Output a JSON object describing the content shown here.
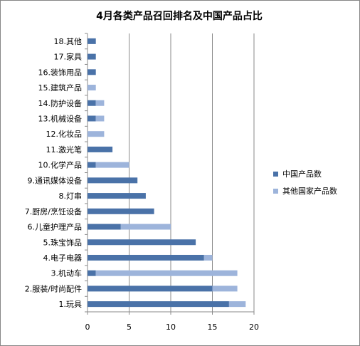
{
  "chart_data": {
    "type": "bar",
    "orientation": "horizontal",
    "stacked": true,
    "title": "4月各类产品召回排名及中国产品占比",
    "categories": [
      "1.玩具",
      "2.服装/时尚配件",
      "3.机动车",
      "4.电子电器",
      "5.珠宝饰品",
      "6.儿童护理产品",
      "7.厨房/烹饪设备",
      "8.灯串",
      "9.通讯媒体设备",
      "10.化学产品",
      "11.激光笔",
      "12.化妆品",
      "13.机械设备",
      "14.防护设备",
      "15.建筑产品",
      "16.装饰用品",
      "17.家具",
      "18.其他"
    ],
    "series": [
      {
        "name": "中国产品数",
        "color": "#4a72a8",
        "values": [
          17,
          15,
          1,
          14,
          13,
          4,
          8,
          7,
          6,
          1,
          3,
          0,
          1,
          1,
          0,
          1,
          1,
          1
        ]
      },
      {
        "name": "其他国家产品数",
        "color": "#9db4db",
        "values": [
          2,
          3,
          17,
          1,
          0,
          6,
          0,
          0,
          0,
          4,
          0,
          2,
          1,
          1,
          1,
          0,
          0,
          0
        ]
      }
    ],
    "xlim": [
      0,
      20
    ],
    "xticks": [
      0,
      5,
      10,
      15,
      20
    ],
    "grid": true,
    "legend_position": "right"
  }
}
